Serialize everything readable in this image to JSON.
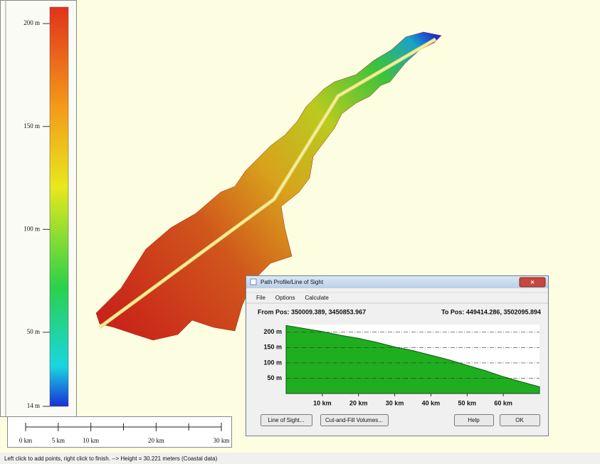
{
  "chart_data": {
    "type": "area",
    "x": [
      0,
      5,
      10,
      15,
      20,
      25,
      30,
      35,
      40,
      45,
      50,
      55,
      60,
      65,
      70
    ],
    "values": [
      222,
      212,
      202,
      190,
      180,
      167,
      152,
      140,
      125,
      110,
      92,
      75,
      55,
      38,
      22
    ],
    "xlim": [
      0,
      70
    ],
    "ylim": [
      0,
      225
    ],
    "xticks": [
      {
        "value": 10,
        "label": "10 km"
      },
      {
        "value": 20,
        "label": "20 km"
      },
      {
        "value": 30,
        "label": "30 km"
      },
      {
        "value": 40,
        "label": "40 km"
      },
      {
        "value": 50,
        "label": "50 km"
      },
      {
        "value": 60,
        "label": "60 km"
      }
    ],
    "yticks": [
      {
        "value": 200,
        "label": "200 m"
      },
      {
        "value": 150,
        "label": "150 m"
      },
      {
        "value": 100,
        "label": "100 m"
      },
      {
        "value": 50,
        "label": "50 m"
      }
    ],
    "grid": true,
    "color": "#1fae1f"
  },
  "legend": {
    "range": [
      14,
      208
    ],
    "ticks": [
      {
        "value": 200,
        "label": "200 m"
      },
      {
        "value": 150,
        "label": "150 m"
      },
      {
        "value": 100,
        "label": "100 m"
      },
      {
        "value": 50,
        "label": "50 m"
      },
      {
        "value": 14,
        "label": "14 m"
      }
    ]
  },
  "scale_bar": {
    "range": [
      0,
      30
    ],
    "ticks": [
      {
        "value": 0,
        "label": "0 km"
      },
      {
        "value": 5,
        "label": "5 km"
      },
      {
        "value": 10,
        "label": "10 km"
      },
      {
        "value": 20,
        "label": "20 km"
      },
      {
        "value": 30,
        "label": "30 km"
      }
    ],
    "minor_ticks": [
      15,
      25
    ]
  },
  "dialog": {
    "title": "Path Profile/Line of Sight",
    "menu": [
      "File",
      "Options",
      "Calculate"
    ],
    "from_pos": "From Pos: 350009.389, 3450853.967",
    "to_pos": "To Pos: 449414.286, 3502095.894",
    "buttons": [
      "Line of Sight...",
      "Cut-and-Fill Volumes...",
      "Help",
      "OK"
    ]
  },
  "status_bar": "Left click to add points, right click to finish. --> Height = 30.221 meters (Coastal data)"
}
